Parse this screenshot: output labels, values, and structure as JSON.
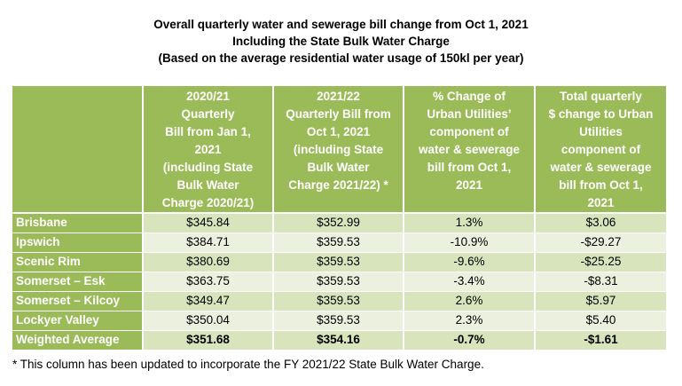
{
  "title": {
    "line1": "Overall quarterly water and sewerage bill change from Oct 1, 2021",
    "line2": "Including the State Bulk Water Charge",
    "line3": "(Based on the average residential water usage of 150kl per year)"
  },
  "table": {
    "headers": [
      {
        "lines": [
          ""
        ]
      },
      {
        "lines": [
          "2020/21",
          "Quarterly",
          "Bill from Jan 1,",
          "2021",
          "(including State",
          "Bulk Water",
          "Charge 2020/21)"
        ]
      },
      {
        "lines": [
          "2021/22",
          "Quarterly Bill from",
          "Oct 1, 2021",
          "(including State",
          "Bulk Water",
          "Charge 2021/22) *"
        ]
      },
      {
        "lines": [
          "% Change of",
          "Urban Utilities’",
          "component of",
          "water & sewerage",
          "bill from Oct 1,",
          "2021"
        ]
      },
      {
        "lines": [
          "Total quarterly",
          "$ change to Urban",
          "Utilities",
          "component of",
          "water & sewerage",
          "bill from Oct 1,",
          "2021"
        ]
      }
    ],
    "rows": [
      {
        "region": "Brisbane",
        "bill_2020_21": "$345.84",
        "bill_2021_22": "$352.99",
        "pct_change": "1.3%",
        "dollar_change": "$3.06"
      },
      {
        "region": "Ipswich",
        "bill_2020_21": "$384.71",
        "bill_2021_22": "$359.53",
        "pct_change": "-10.9%",
        "dollar_change": "-$29.27"
      },
      {
        "region": "Scenic Rim",
        "bill_2020_21": "$380.69",
        "bill_2021_22": "$359.53",
        "pct_change": "-9.6%",
        "dollar_change": "-$25.25"
      },
      {
        "region": "Somerset – Esk",
        "bill_2020_21": "$363.75",
        "bill_2021_22": "$359.53",
        "pct_change": "-3.4%",
        "dollar_change": "-$8.31"
      },
      {
        "region": "Somerset – Kilcoy",
        "bill_2020_21": "$349.47",
        "bill_2021_22": "$359.53",
        "pct_change": "2.6%",
        "dollar_change": "$5.97"
      },
      {
        "region": "Lockyer Valley",
        "bill_2020_21": "$350.04",
        "bill_2021_22": "$359.53",
        "pct_change": "2.3%",
        "dollar_change": "$5.40"
      },
      {
        "region": "Weighted Average",
        "bill_2020_21": "$351.68",
        "bill_2021_22": "$354.16",
        "pct_change": "-0.7%",
        "dollar_change": "-$1.61"
      }
    ]
  },
  "footnote": "* This column has been updated to incorporate the FY 2021/22 State Bulk Water Charge.",
  "colors": {
    "header_green": "#9bbb59",
    "row_dark": "#d7e4bc",
    "row_light": "#ebf1de",
    "header_text": "#ffffff"
  }
}
